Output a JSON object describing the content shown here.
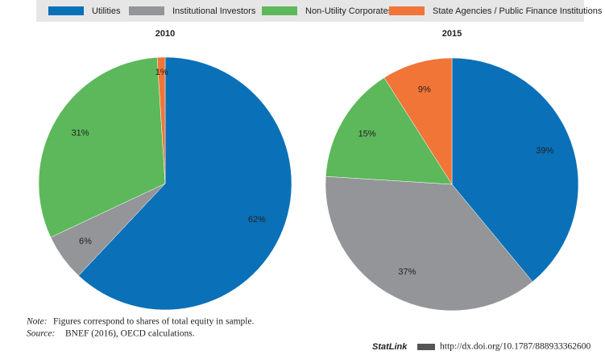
{
  "legend": [
    {
      "name": "Utilities",
      "color": "#0a70b7"
    },
    {
      "name": "Institutional Investors",
      "color": "#939598"
    },
    {
      "name": "Non-Utility Corporates",
      "color": "#5cb85a"
    },
    {
      "name": "State Agencies / Public Finance Institutions",
      "color": "#f07537"
    }
  ],
  "chart_data": [
    {
      "type": "pie",
      "title": "2010",
      "values": [
        62,
        6,
        31,
        1
      ],
      "value_labels": [
        "62%",
        "6%",
        "31%",
        "1%"
      ]
    },
    {
      "type": "pie",
      "title": "2015",
      "values": [
        39,
        37,
        15,
        9
      ],
      "value_labels": [
        "39%",
        "37%",
        "15%",
        "9%"
      ]
    }
  ],
  "note_label": "Note:",
  "note": "Figures correspond to shares of total equity in sample.",
  "source_label": "Source:",
  "source": "BNEF (2016), OECD calculations.",
  "statlink_label": "StatLink",
  "statlink_url": "http://dx.doi.org/10.1787/888933362600"
}
